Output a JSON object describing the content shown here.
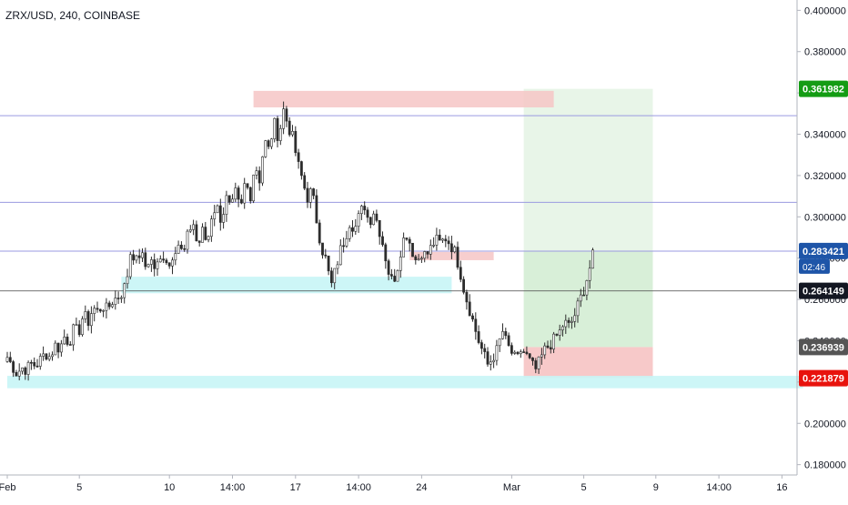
{
  "header": {
    "title": "ZRX/USD, 240, COINBASE"
  },
  "colors": {
    "up": "#26a69a",
    "down": "#ef5350",
    "candle_body_up": "#ffffff",
    "candle_outline": "#2c2c2c",
    "resistance_zone": "#f6c6c6",
    "support_zone": "#c8f5f6",
    "profit_zone": "#d8efd8",
    "loss_zone": "#f7c9c9",
    "hline": "#9a9ae0",
    "target_label": "#149c14",
    "current_label": "#1e55a8",
    "entry_label": "#131722",
    "stop_label": "#555555",
    "stop2_label": "#e8130d"
  },
  "chart_data": {
    "type": "candlestick",
    "title": "ZRX/USD, 240, COINBASE",
    "ylim": [
      0.175,
      0.405
    ],
    "y_ticks": [
      "0.180000",
      "0.200000",
      "0.220000",
      "0.240000",
      "0.260000",
      "0.280000",
      "0.300000",
      "0.320000",
      "0.340000",
      "0.360000",
      "0.380000",
      "0.400000"
    ],
    "y_tick_values": [
      0.18,
      0.2,
      0.22,
      0.24,
      0.26,
      0.28,
      0.3,
      0.32,
      0.34,
      0.36,
      0.38,
      0.4
    ],
    "x_ticks": [
      {
        "label": "Feb",
        "index": 0
      },
      {
        "label": "5",
        "index": 24
      },
      {
        "label": "10",
        "index": 54
      },
      {
        "label": "14:00",
        "index": 75
      },
      {
        "label": "17",
        "index": 96
      },
      {
        "label": "14:00",
        "index": 117
      },
      {
        "label": "24",
        "index": 138
      },
      {
        "label": "Mar",
        "index": 168
      },
      {
        "label": "5",
        "index": 192
      },
      {
        "label": "9",
        "index": 216
      },
      {
        "label": "14:00",
        "index": 237
      },
      {
        "label": "16",
        "index": 258
      }
    ],
    "series": [
      {
        "type": "candlestick",
        "ohlc_path": [
          0.232,
          0.228,
          0.224,
          0.227,
          0.226,
          0.229,
          0.228,
          0.231,
          0.234,
          0.232,
          0.238,
          0.236,
          0.242,
          0.239,
          0.246,
          0.244,
          0.253,
          0.249,
          0.256,
          0.254,
          0.257,
          0.255,
          0.259,
          0.261,
          0.263,
          0.268,
          0.285,
          0.278,
          0.283,
          0.276,
          0.28,
          0.275,
          0.278,
          0.282,
          0.276,
          0.284,
          0.287,
          0.281,
          0.292,
          0.298,
          0.285,
          0.293,
          0.287,
          0.302,
          0.305,
          0.298,
          0.309,
          0.303,
          0.312,
          0.302,
          0.318,
          0.309,
          0.326,
          0.318,
          0.337,
          0.332,
          0.346,
          0.338,
          0.352,
          0.344,
          0.338,
          0.326,
          0.318,
          0.309,
          0.313,
          0.298,
          0.285,
          0.279,
          0.266,
          0.275,
          0.284,
          0.29,
          0.298,
          0.294,
          0.301,
          0.306,
          0.297,
          0.303,
          0.295,
          0.286,
          0.274,
          0.268,
          0.276,
          0.288,
          0.292,
          0.284,
          0.278,
          0.283,
          0.281,
          0.285,
          0.289,
          0.287,
          0.29,
          0.287,
          0.283,
          0.275,
          0.264,
          0.256,
          0.248,
          0.24,
          0.234,
          0.228,
          0.232,
          0.236,
          0.245,
          0.238,
          0.234,
          0.23,
          0.236,
          0.233,
          0.229,
          0.226,
          0.231,
          0.236,
          0.238,
          0.241,
          0.244,
          0.249,
          0.247,
          0.251,
          0.258,
          0.264,
          0.272,
          0.281
        ],
        "count": 196
      }
    ],
    "horizontal_lines": [
      0.349,
      0.307,
      0.2834,
      0.2641
    ],
    "zones": [
      {
        "kind": "resistance",
        "y_top": 0.361,
        "y_bottom": 0.353,
        "x_start": 82,
        "x_end": 182
      },
      {
        "kind": "resistance",
        "y_top": 0.283,
        "y_bottom": 0.279,
        "x_start": 134,
        "x_end": 162
      },
      {
        "kind": "support",
        "y_top": 0.271,
        "y_bottom": 0.263,
        "x_start": 38,
        "x_end": 148
      },
      {
        "kind": "support",
        "y_top": 0.223,
        "y_bottom": 0.217,
        "x_start": 0,
        "x_end": 265
      }
    ],
    "position": {
      "x_start": 172,
      "x_end": 215,
      "target": 0.361982,
      "current": 0.283421,
      "entry": 0.264149,
      "stop": 0.236939,
      "stop2": 0.221879
    },
    "price_labels": [
      {
        "kind": "target",
        "text": "0.361982",
        "value": 0.361982
      },
      {
        "kind": "current",
        "text": "0.283421",
        "value": 0.283421,
        "countdown": "02:46"
      },
      {
        "kind": "entry",
        "text": "0.264149",
        "value": 0.264149
      },
      {
        "kind": "stop",
        "text": "0.236939",
        "value": 0.236939
      },
      {
        "kind": "stop2",
        "text": "0.221879",
        "value": 0.221879
      }
    ],
    "grid": false
  }
}
